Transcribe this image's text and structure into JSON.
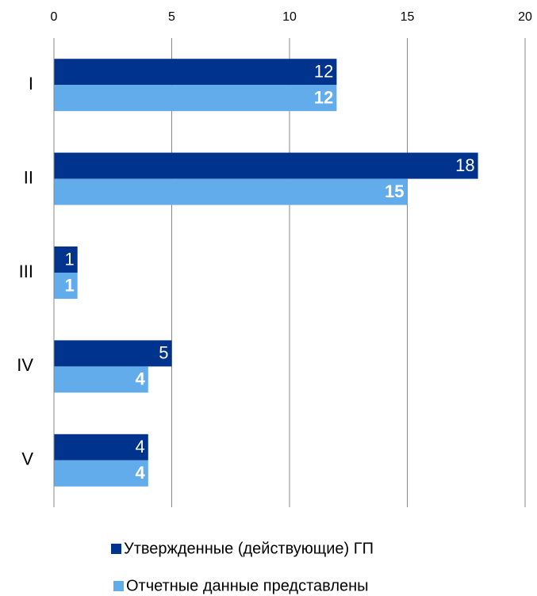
{
  "chart_data": {
    "type": "bar",
    "orientation": "horizontal",
    "categories": [
      "I",
      "II",
      "III",
      "IV",
      "V"
    ],
    "series": [
      {
        "name": "Утвержденные (действующие) ГП",
        "color": "#00338d",
        "values": [
          12,
          18,
          1,
          5,
          4
        ]
      },
      {
        "name": "Отчетные данные представлены",
        "color": "#63acec",
        "values": [
          12,
          15,
          1,
          4,
          4
        ]
      }
    ],
    "xlim": [
      0,
      20
    ],
    "xticks": [
      0,
      5,
      10,
      15,
      20
    ],
    "grid": true,
    "legend": "bottom"
  }
}
